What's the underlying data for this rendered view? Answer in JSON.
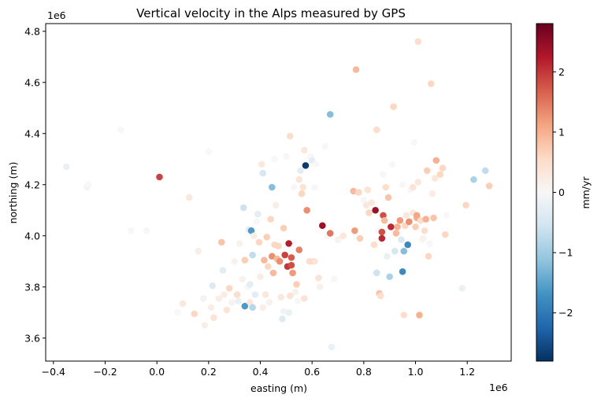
{
  "chart_data": {
    "type": "scatter",
    "title": "Vertical velocity in the Alps measured by GPS",
    "xlabel": "easting (m)",
    "ylabel": "northing (m)",
    "x_offset_label": "1e6",
    "y_offset_label": "1e6",
    "xlim": [
      -0.43,
      1.37
    ],
    "ylim": [
      3.51,
      4.83
    ],
    "x_scale": 1000000,
    "y_scale": 1000000,
    "xticks": [
      -0.4,
      -0.2,
      0.0,
      0.2,
      0.4,
      0.6,
      0.8,
      1.0,
      1.2
    ],
    "xtick_labels": [
      "−0.4",
      "−0.2",
      "0.0",
      "0.2",
      "0.4",
      "0.6",
      "0.8",
      "1.0",
      "1.2"
    ],
    "yticks": [
      3.6,
      3.8,
      4.0,
      4.2,
      4.4,
      4.6,
      4.8
    ],
    "ytick_labels": [
      "3.6",
      "3.8",
      "4.0",
      "4.2",
      "4.4",
      "4.6",
      "4.8"
    ],
    "colorbar": {
      "label": "mm/yr",
      "colormap": "RdBu_r",
      "range": [
        -2.8,
        2.8
      ],
      "ticks": [
        -2,
        -1,
        0,
        1,
        2
      ],
      "tick_labels": [
        "−2",
        "−1",
        "0",
        "1",
        "2"
      ],
      "colors": [
        "#053061",
        "#2166ac",
        "#4393c3",
        "#92c5de",
        "#d1e5f0",
        "#f7f7f7",
        "#fddbc7",
        "#f4a582",
        "#d6604d",
        "#b2182b",
        "#67001f"
      ]
    },
    "grid": false,
    "points": [
      {
        "x": -0.35,
        "y": 4.27,
        "v": -0.2
      },
      {
        "x": -0.27,
        "y": 4.19,
        "v": -0.1
      },
      {
        "x": -0.265,
        "y": 4.2,
        "v": 0.0
      },
      {
        "x": -0.14,
        "y": 4.415,
        "v": 0.0
      },
      {
        "x": -0.1,
        "y": 4.02,
        "v": 0.0
      },
      {
        "x": -0.04,
        "y": 4.02,
        "v": 0.0
      },
      {
        "x": 0.01,
        "y": 4.23,
        "v": 1.9
      },
      {
        "x": 0.08,
        "y": 3.7,
        "v": 0.0
      },
      {
        "x": 0.1,
        "y": 3.735,
        "v": 0.3
      },
      {
        "x": 0.125,
        "y": 4.15,
        "v": 0.3
      },
      {
        "x": 0.145,
        "y": 3.695,
        "v": 0.6
      },
      {
        "x": 0.16,
        "y": 3.94,
        "v": 0.2
      },
      {
        "x": 0.18,
        "y": 3.755,
        "v": 0.1
      },
      {
        "x": 0.185,
        "y": 3.65,
        "v": 0.2
      },
      {
        "x": 0.2,
        "y": 4.33,
        "v": 0.0
      },
      {
        "x": 0.21,
        "y": 3.72,
        "v": 0.2
      },
      {
        "x": 0.215,
        "y": 3.805,
        "v": -0.4
      },
      {
        "x": 0.22,
        "y": 3.68,
        "v": 0.4
      },
      {
        "x": 0.24,
        "y": 3.755,
        "v": 0.2
      },
      {
        "x": 0.25,
        "y": 3.975,
        "v": 0.8
      },
      {
        "x": 0.255,
        "y": 3.865,
        "v": -0.3
      },
      {
        "x": 0.26,
        "y": 3.77,
        "v": 0.2
      },
      {
        "x": 0.27,
        "y": 3.71,
        "v": 0.4
      },
      {
        "x": 0.28,
        "y": 3.795,
        "v": 0.6
      },
      {
        "x": 0.29,
        "y": 3.74,
        "v": 0.1
      },
      {
        "x": 0.3,
        "y": 3.9,
        "v": 0.1
      },
      {
        "x": 0.31,
        "y": 3.77,
        "v": 0.5
      },
      {
        "x": 0.315,
        "y": 3.745,
        "v": -0.2
      },
      {
        "x": 0.32,
        "y": 3.97,
        "v": 0.1
      },
      {
        "x": 0.33,
        "y": 3.83,
        "v": 0.1
      },
      {
        "x": 0.335,
        "y": 4.11,
        "v": -0.6
      },
      {
        "x": 0.34,
        "y": 3.725,
        "v": -1.6
      },
      {
        "x": 0.34,
        "y": 3.905,
        "v": 0.7
      },
      {
        "x": 0.35,
        "y": 3.8,
        "v": 0.0
      },
      {
        "x": 0.355,
        "y": 4.025,
        "v": -0.3
      },
      {
        "x": 0.36,
        "y": 3.81,
        "v": -0.3
      },
      {
        "x": 0.36,
        "y": 3.74,
        "v": 0.3
      },
      {
        "x": 0.365,
        "y": 4.02,
        "v": -1.6
      },
      {
        "x": 0.37,
        "y": 3.72,
        "v": -0.8
      },
      {
        "x": 0.37,
        "y": 3.925,
        "v": -0.7
      },
      {
        "x": 0.375,
        "y": 4.0,
        "v": 0.2
      },
      {
        "x": 0.38,
        "y": 3.77,
        "v": -0.3
      },
      {
        "x": 0.385,
        "y": 4.055,
        "v": 0.0
      },
      {
        "x": 0.39,
        "y": 4.085,
        "v": -0.3
      },
      {
        "x": 0.395,
        "y": 3.975,
        "v": 0.6
      },
      {
        "x": 0.4,
        "y": 3.84,
        "v": 0.2
      },
      {
        "x": 0.405,
        "y": 4.28,
        "v": 0.3
      },
      {
        "x": 0.41,
        "y": 4.245,
        "v": -0.5
      },
      {
        "x": 0.41,
        "y": 3.72,
        "v": 0.2
      },
      {
        "x": 0.415,
        "y": 3.905,
        "v": 0.9
      },
      {
        "x": 0.42,
        "y": 3.77,
        "v": 0.3
      },
      {
        "x": 0.425,
        "y": 3.995,
        "v": 0.7
      },
      {
        "x": 0.43,
        "y": 3.88,
        "v": 0.6
      },
      {
        "x": 0.435,
        "y": 3.74,
        "v": 0.1
      },
      {
        "x": 0.44,
        "y": 4.065,
        "v": 0.6
      },
      {
        "x": 0.445,
        "y": 4.19,
        "v": -1.2
      },
      {
        "x": 0.445,
        "y": 3.92,
        "v": 1.3
      },
      {
        "x": 0.45,
        "y": 3.855,
        "v": 0.9
      },
      {
        "x": 0.455,
        "y": 3.965,
        "v": 0.6
      },
      {
        "x": 0.455,
        "y": 4.3,
        "v": 0.0
      },
      {
        "x": 0.46,
        "y": 4.12,
        "v": 0.2
      },
      {
        "x": 0.465,
        "y": 3.91,
        "v": 0.9
      },
      {
        "x": 0.47,
        "y": 3.96,
        "v": 0.6
      },
      {
        "x": 0.475,
        "y": 3.9,
        "v": 1.3
      },
      {
        "x": 0.48,
        "y": 3.76,
        "v": 0.3
      },
      {
        "x": 0.485,
        "y": 3.675,
        "v": -0.4
      },
      {
        "x": 0.49,
        "y": 3.705,
        "v": -0.1
      },
      {
        "x": 0.49,
        "y": 4.03,
        "v": 0.7
      },
      {
        "x": 0.495,
        "y": 3.925,
        "v": 1.9
      },
      {
        "x": 0.5,
        "y": 4.31,
        "v": 0.0
      },
      {
        "x": 0.505,
        "y": 3.88,
        "v": 2.0
      },
      {
        "x": 0.51,
        "y": 3.97,
        "v": 2.2
      },
      {
        "x": 0.51,
        "y": 3.7,
        "v": -0.2
      },
      {
        "x": 0.515,
        "y": 4.39,
        "v": 0.5
      },
      {
        "x": 0.515,
        "y": 3.765,
        "v": 0.4
      },
      {
        "x": 0.52,
        "y": 3.915,
        "v": 1.7
      },
      {
        "x": 0.52,
        "y": 3.885,
        "v": 1.8
      },
      {
        "x": 0.525,
        "y": 3.855,
        "v": 1.2
      },
      {
        "x": 0.53,
        "y": 4.19,
        "v": 0.0
      },
      {
        "x": 0.535,
        "y": 3.78,
        "v": 0.1
      },
      {
        "x": 0.54,
        "y": 3.81,
        "v": 0.7
      },
      {
        "x": 0.545,
        "y": 3.745,
        "v": 0.0
      },
      {
        "x": 0.55,
        "y": 3.945,
        "v": 1.4
      },
      {
        "x": 0.55,
        "y": 4.22,
        "v": 0.4
      },
      {
        "x": 0.555,
        "y": 4.255,
        "v": -0.3
      },
      {
        "x": 0.56,
        "y": 4.165,
        "v": 0.6
      },
      {
        "x": 0.565,
        "y": 4.19,
        "v": 0.4
      },
      {
        "x": 0.57,
        "y": 3.755,
        "v": 0.4
      },
      {
        "x": 0.57,
        "y": 4.335,
        "v": 0.3
      },
      {
        "x": 0.575,
        "y": 4.275,
        "v": -2.7
      },
      {
        "x": 0.58,
        "y": 4.1,
        "v": 1.3
      },
      {
        "x": 0.59,
        "y": 3.9,
        "v": 0.5
      },
      {
        "x": 0.595,
        "y": 4.31,
        "v": 0.0
      },
      {
        "x": 0.6,
        "y": 4.295,
        "v": -0.3
      },
      {
        "x": 0.605,
        "y": 3.9,
        "v": 0.6
      },
      {
        "x": 0.61,
        "y": 4.19,
        "v": 0.0
      },
      {
        "x": 0.61,
        "y": 3.9,
        "v": 0.4
      },
      {
        "x": 0.615,
        "y": 4.28,
        "v": 0.0
      },
      {
        "x": 0.625,
        "y": 3.835,
        "v": 0.4
      },
      {
        "x": 0.63,
        "y": 3.8,
        "v": 0.1
      },
      {
        "x": 0.64,
        "y": 4.04,
        "v": 2.4
      },
      {
        "x": 0.65,
        "y": 4.35,
        "v": 0.0
      },
      {
        "x": 0.66,
        "y": 4.0,
        "v": 0.0
      },
      {
        "x": 0.67,
        "y": 4.475,
        "v": -1.2
      },
      {
        "x": 0.67,
        "y": 4.01,
        "v": 1.5
      },
      {
        "x": 0.675,
        "y": 3.565,
        "v": -0.2
      },
      {
        "x": 0.685,
        "y": 3.83,
        "v": 0.0
      },
      {
        "x": 0.7,
        "y": 3.985,
        "v": 0.1
      },
      {
        "x": 0.72,
        "y": 4.0,
        "v": 0.3
      },
      {
        "x": 0.76,
        "y": 4.175,
        "v": 0.9
      },
      {
        "x": 0.765,
        "y": 4.02,
        "v": 1.2
      },
      {
        "x": 0.77,
        "y": 4.65,
        "v": 0.9
      },
      {
        "x": 0.78,
        "y": 4.17,
        "v": 0.6
      },
      {
        "x": 0.785,
        "y": 3.99,
        "v": 0.7
      },
      {
        "x": 0.8,
        "y": 4.14,
        "v": 0.0
      },
      {
        "x": 0.81,
        "y": 4.12,
        "v": 0.3
      },
      {
        "x": 0.815,
        "y": 4.18,
        "v": 0.4
      },
      {
        "x": 0.82,
        "y": 4.09,
        "v": 0.6
      },
      {
        "x": 0.83,
        "y": 4.13,
        "v": 0.3
      },
      {
        "x": 0.84,
        "y": 3.965,
        "v": 0.5
      },
      {
        "x": 0.845,
        "y": 4.1,
        "v": 2.4
      },
      {
        "x": 0.85,
        "y": 3.855,
        "v": -0.6
      },
      {
        "x": 0.85,
        "y": 4.415,
        "v": 0.5
      },
      {
        "x": 0.855,
        "y": 4.02,
        "v": 0.0
      },
      {
        "x": 0.86,
        "y": 3.775,
        "v": 0.8
      },
      {
        "x": 0.865,
        "y": 3.765,
        "v": 0.5
      },
      {
        "x": 0.87,
        "y": 4.015,
        "v": 1.8
      },
      {
        "x": 0.87,
        "y": 3.99,
        "v": 2.1
      },
      {
        "x": 0.875,
        "y": 4.08,
        "v": 1.8
      },
      {
        "x": 0.875,
        "y": 4.24,
        "v": 0.0
      },
      {
        "x": 0.88,
        "y": 4.06,
        "v": 0.9
      },
      {
        "x": 0.885,
        "y": 4.19,
        "v": 0.5
      },
      {
        "x": 0.89,
        "y": 3.92,
        "v": -0.2
      },
      {
        "x": 0.895,
        "y": 4.15,
        "v": 0.8
      },
      {
        "x": 0.9,
        "y": 3.84,
        "v": -0.9
      },
      {
        "x": 0.905,
        "y": 4.035,
        "v": 2.1
      },
      {
        "x": 0.91,
        "y": 4.28,
        "v": 0.0
      },
      {
        "x": 0.915,
        "y": 4.505,
        "v": 0.6
      },
      {
        "x": 0.92,
        "y": 3.94,
        "v": -0.5
      },
      {
        "x": 0.925,
        "y": 4.01,
        "v": 0.9
      },
      {
        "x": 0.93,
        "y": 4.035,
        "v": 1.0
      },
      {
        "x": 0.94,
        "y": 4.06,
        "v": 1.2
      },
      {
        "x": 0.945,
        "y": 3.985,
        "v": -0.4
      },
      {
        "x": 0.95,
        "y": 3.86,
        "v": -1.8
      },
      {
        "x": 0.95,
        "y": 4.2,
        "v": 0.0
      },
      {
        "x": 0.955,
        "y": 3.69,
        "v": 0.5
      },
      {
        "x": 0.955,
        "y": 3.94,
        "v": -1.2
      },
      {
        "x": 0.96,
        "y": 4.04,
        "v": 0.6
      },
      {
        "x": 0.965,
        "y": 4.08,
        "v": 0.3
      },
      {
        "x": 0.97,
        "y": 3.965,
        "v": -1.8
      },
      {
        "x": 0.975,
        "y": 4.055,
        "v": 1.3
      },
      {
        "x": 0.98,
        "y": 4.18,
        "v": 0.0
      },
      {
        "x": 0.99,
        "y": 4.09,
        "v": 0.3
      },
      {
        "x": 0.99,
        "y": 4.19,
        "v": 0.4
      },
      {
        "x": 0.995,
        "y": 4.365,
        "v": 0.0
      },
      {
        "x": 1.0,
        "y": 4.035,
        "v": 0.7
      },
      {
        "x": 1.005,
        "y": 4.07,
        "v": 1.0
      },
      {
        "x": 1.005,
        "y": 4.08,
        "v": 1.1
      },
      {
        "x": 1.01,
        "y": 4.76,
        "v": 0.5
      },
      {
        "x": 1.01,
        "y": 4.21,
        "v": 0.3
      },
      {
        "x": 1.015,
        "y": 3.69,
        "v": 1.0
      },
      {
        "x": 1.02,
        "y": 4.06,
        "v": 0.5
      },
      {
        "x": 1.025,
        "y": 3.985,
        "v": 0.0
      },
      {
        "x": 1.03,
        "y": 3.99,
        "v": 0.1
      },
      {
        "x": 1.035,
        "y": 4.02,
        "v": 0.5
      },
      {
        "x": 1.04,
        "y": 4.065,
        "v": 1.0
      },
      {
        "x": 1.045,
        "y": 4.255,
        "v": 0.7
      },
      {
        "x": 1.05,
        "y": 3.92,
        "v": 0.6
      },
      {
        "x": 1.055,
        "y": 3.97,
        "v": 0.0
      },
      {
        "x": 1.06,
        "y": 4.595,
        "v": 0.6
      },
      {
        "x": 1.065,
        "y": 4.165,
        "v": 0.2
      },
      {
        "x": 1.07,
        "y": 4.07,
        "v": 0.8
      },
      {
        "x": 1.075,
        "y": 4.225,
        "v": 0.3
      },
      {
        "x": 1.08,
        "y": 4.295,
        "v": 1.0
      },
      {
        "x": 1.095,
        "y": 4.24,
        "v": 0.6
      },
      {
        "x": 1.105,
        "y": 4.265,
        "v": 0.6
      },
      {
        "x": 1.115,
        "y": 4.005,
        "v": 0.6
      },
      {
        "x": 1.12,
        "y": 4.08,
        "v": 0.0
      },
      {
        "x": 1.18,
        "y": 3.795,
        "v": -0.2
      },
      {
        "x": 1.195,
        "y": 4.12,
        "v": 0.6
      },
      {
        "x": 1.225,
        "y": 4.22,
        "v": -0.9
      },
      {
        "x": 1.27,
        "y": 4.255,
        "v": -0.7
      },
      {
        "x": 1.285,
        "y": 4.195,
        "v": 0.7
      }
    ]
  }
}
